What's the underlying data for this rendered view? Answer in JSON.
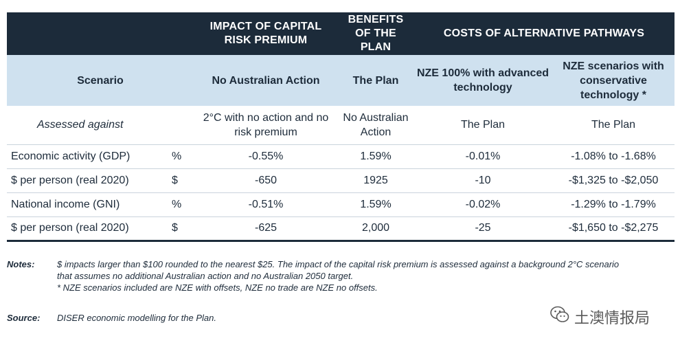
{
  "group_headers": {
    "impact": "IMPACT OF CAPITAL RISK PREMIUM",
    "benefits": "BENEFITS OF THE PLAN",
    "costs": "COSTS OF ALTERNATIVE PATHWAYS"
  },
  "column_headers": {
    "scenario": "Scenario",
    "no_action": "No Australian Action",
    "the_plan": "The Plan",
    "nze100": "NZE 100% with advanced technology",
    "nze_conservative": "NZE scenarios with conservative technology *"
  },
  "assessed_against": {
    "label": "Assessed against",
    "values": [
      "2°C with no action and no risk premium",
      "No Australian Action",
      "The Plan",
      "The Plan"
    ]
  },
  "rows": [
    {
      "label": "Economic activity (GDP)",
      "unit": "%",
      "values": [
        "-0.55%",
        "1.59%",
        "-0.01%",
        "-1.08% to -1.68%"
      ]
    },
    {
      "label": "$ per person (real 2020)",
      "unit": "$",
      "values": [
        "-650",
        "1925",
        "-10",
        "-$1,325 to -$2,050"
      ]
    },
    {
      "label": "National income (GNI)",
      "unit": "%",
      "values": [
        "-0.51%",
        "1.59%",
        "-0.02%",
        "-1.29% to -1.79%"
      ]
    },
    {
      "label": "$ per person (real 2020)",
      "unit": "$",
      "values": [
        "-625",
        "2,000",
        "-25",
        "-$1,650 to -$2,275"
      ]
    }
  ],
  "notes": {
    "key": "Notes:",
    "line1": "$ impacts larger than $100 rounded to the nearest $25. The impact of the capital risk premium is assessed against a background 2°C scenario that assumes no additional Australian action and no Australian 2050 target.",
    "line2": "* NZE scenarios included are NZE with offsets, NZE no trade are NZE no offsets."
  },
  "source": {
    "key": "Source:",
    "text": "DISER economic modelling for the Plan."
  },
  "watermark": {
    "text": "土澳情报局",
    "icon": "wechat-icon"
  },
  "colors": {
    "header_dark": "#1c2b3a",
    "header_light": "#cfe1ef"
  }
}
